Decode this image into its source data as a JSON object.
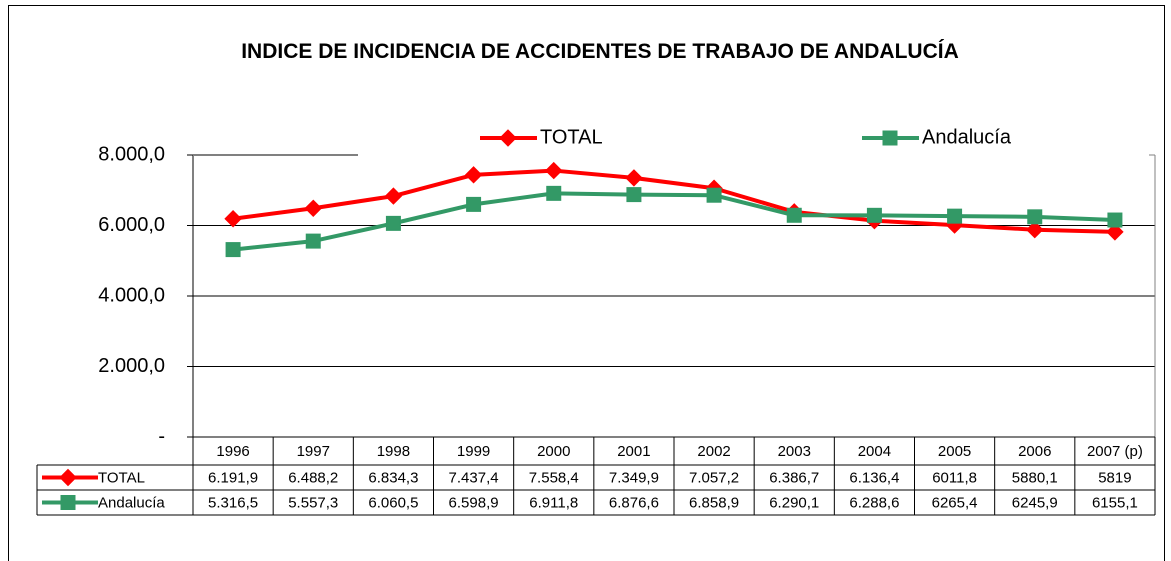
{
  "chart_data": {
    "type": "line",
    "title": "INDICE DE INCIDENCIA DE ACCIDENTES DE TRABAJO DE ANDALUCÍA",
    "categories": [
      "1996",
      "1997",
      "1998",
      "1999",
      "2000",
      "2001",
      "2002",
      "2003",
      "2004",
      "2005",
      "2006",
      "2007 (p)"
    ],
    "series": [
      {
        "name": "TOTAL",
        "color": "#ff0000",
        "marker": "diamond",
        "values": [
          6191.9,
          6488.2,
          6834.3,
          7437.4,
          7558.4,
          7349.9,
          7057.2,
          6386.7,
          6136.4,
          6011.8,
          5880.1,
          5819
        ],
        "value_labels": [
          "6.191,9",
          "6.488,2",
          "6.834,3",
          "7.437,4",
          "7.558,4",
          "7.349,9",
          "7.057,2",
          "6.386,7",
          "6.136,4",
          "6011,8",
          "5880,1",
          "5819"
        ]
      },
      {
        "name": "Andalucía",
        "color": "#339966",
        "marker": "square",
        "values": [
          5316.5,
          5557.3,
          6060.5,
          6598.9,
          6911.8,
          6876.6,
          6858.9,
          6290.1,
          6288.6,
          6265.4,
          6245.9,
          6155.1
        ],
        "value_labels": [
          "5.316,5",
          "5.557,3",
          "6.060,5",
          "6.598,9",
          "6.911,8",
          "6.876,6",
          "6.858,9",
          "6.290,1",
          "6.288,6",
          "6265,4",
          "6245,9",
          "6155,1"
        ]
      }
    ],
    "ylim": [
      0,
      8000
    ],
    "yticks": [
      {
        "value": 0,
        "label": "-"
      },
      {
        "value": 2000,
        "label": "2.000,0"
      },
      {
        "value": 4000,
        "label": "4.000,0"
      },
      {
        "value": 6000,
        "label": "6.000,0"
      },
      {
        "value": 8000,
        "label": "8.000,0"
      }
    ],
    "grid": true
  }
}
